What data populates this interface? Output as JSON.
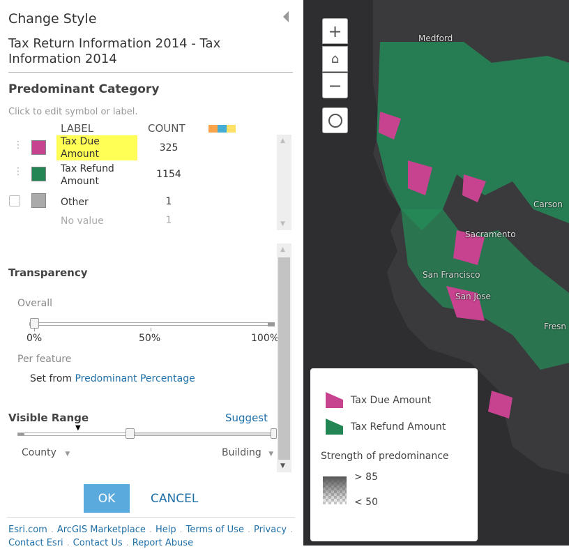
{
  "panel": {
    "title": "Change Style",
    "subtitle": "Tax Return Information 2014 - Tax Information 2014",
    "section": "Predominant Category",
    "hint": "Click to edit symbol or label.",
    "col_label": "LABEL",
    "col_count": "COUNT",
    "ramp_colors": [
      "#f9a34b",
      "#45aed6",
      "#fde167"
    ],
    "rows": [
      {
        "label": "Tax Due Amount",
        "count": "325",
        "color": "#c7428f",
        "highlighted": true
      },
      {
        "label": "Tax Refund Amount",
        "count": "1154",
        "color": "#228553"
      },
      {
        "label": "Other",
        "count": "1",
        "color": "#aaaaaa"
      },
      {
        "label": "No value",
        "count": "1"
      }
    ],
    "transparency": {
      "title": "Transparency",
      "overall": "Overall",
      "ticks": [
        "0%",
        "50%",
        "100%"
      ],
      "value_percent": 0,
      "per_feature": "Per feature",
      "set_from": "Set from",
      "set_from_link": "Predominant Percentage"
    },
    "visible_range": {
      "title": "Visible Range",
      "suggest": "Suggest",
      "min": "County",
      "max": "Building"
    },
    "ok": "OK",
    "cancel": "CANCEL",
    "footer": [
      "Esri.com",
      "ArcGIS Marketplace",
      "Help",
      "Terms of Use",
      "Privacy",
      "Contact Esri",
      "Contact Us",
      "Report Abuse"
    ],
    "footer_sep": "."
  },
  "map": {
    "zoom_in": "+",
    "zoom_out": "−",
    "cities": [
      "Medford",
      "Carson",
      "Sacramento",
      "San Francisco",
      "San Jose",
      "Fresn"
    ],
    "legend": {
      "items": [
        {
          "label": "Tax Due Amount",
          "color": "#c7428f"
        },
        {
          "label": "Tax Refund Amount",
          "color": "#228553"
        }
      ],
      "strength_title": "Strength of predominance",
      "high": "> 85",
      "low": "< 50"
    }
  }
}
